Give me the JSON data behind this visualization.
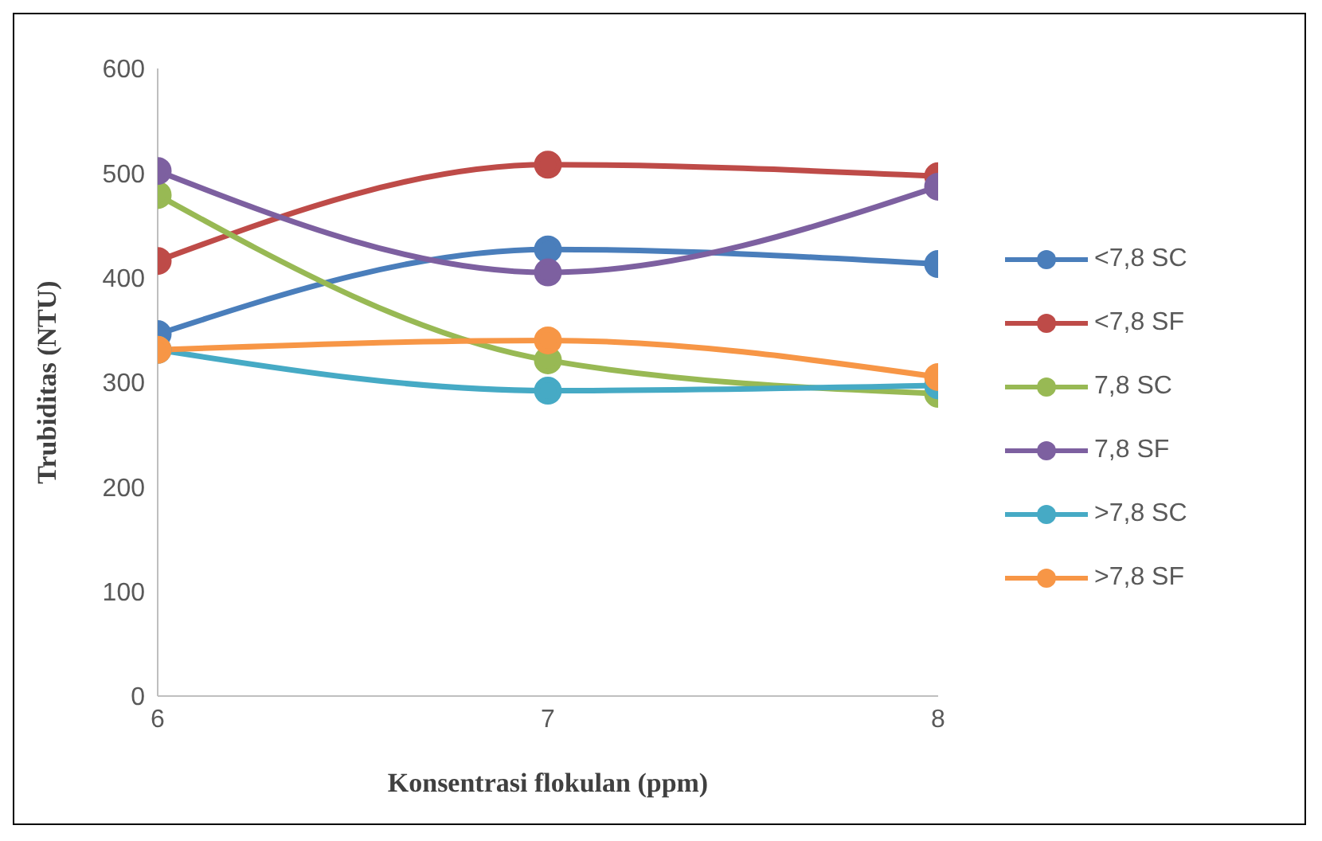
{
  "chart_data": {
    "type": "line",
    "xlabel": "Konsentrasi flokulan (ppm)",
    "ylabel": "Trubiditas (NTU)",
    "x": [
      6,
      7,
      8
    ],
    "xlim": [
      6,
      8
    ],
    "xticks": [
      6,
      7,
      8
    ],
    "ylim": [
      0,
      600
    ],
    "yticks": [
      0,
      100,
      200,
      300,
      400,
      500,
      600
    ],
    "grid": false,
    "legend": "right",
    "marker": "circle",
    "line_style": "solid",
    "series": [
      {
        "name": "<7,8 SC",
        "color": "#4a7ebb",
        "values": [
          346,
          427,
          413
        ]
      },
      {
        "name": "<7,8 SF",
        "color": "#be4b48",
        "values": [
          416,
          508,
          497
        ]
      },
      {
        "name": "7,8 SC",
        "color": "#98b954",
        "values": [
          479,
          321,
          289
        ]
      },
      {
        "name": "7,8 SF",
        "color": "#7d60a0",
        "values": [
          502,
          405,
          487
        ]
      },
      {
        "name": ">7,8 SC",
        "color": "#46aac5",
        "values": [
          331,
          292,
          297
        ]
      },
      {
        "name": ">7,8 SF",
        "color": "#f79646",
        "values": [
          331,
          340,
          305
        ]
      }
    ]
  }
}
